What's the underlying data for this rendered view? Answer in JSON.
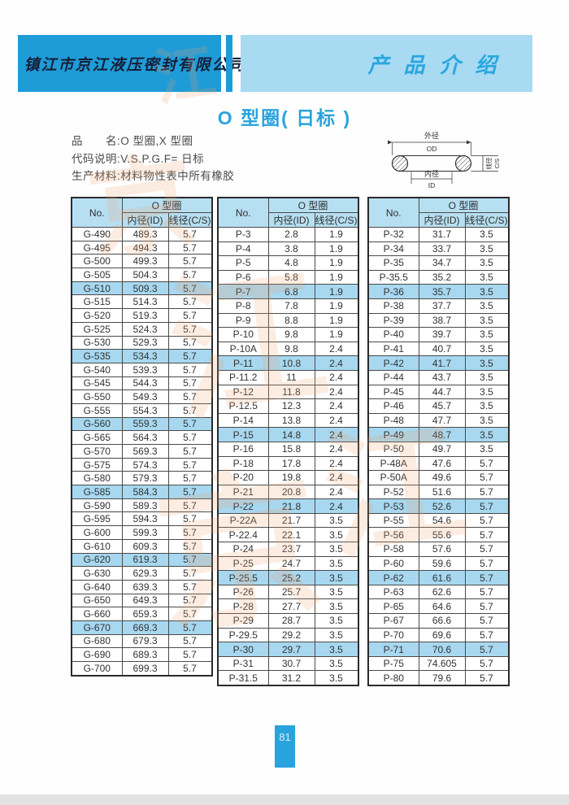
{
  "header": {
    "company": "镇江市京江液压密封有限公司",
    "section": "产品介绍"
  },
  "title": "O 型圈( 日标 )",
  "info": [
    "品　　名:O 型圈,X 型圈",
    "代码说明:V.S.P.G.F= 日标",
    "生产材料:材料物性表中所有橡胶"
  ],
  "diagram": {
    "od_label": "外径",
    "od_abbr": "OD",
    "id_label": "内径",
    "id_abbr": "ID",
    "cs_label": "线径",
    "cs_abbr": "C/S"
  },
  "table_header": {
    "no": "No.",
    "group": "O 型圈",
    "id": "内径(ID)",
    "cs": "线径(C/S)"
  },
  "tables": [
    {
      "highlight_rows": [
        4,
        9,
        14,
        19,
        24,
        29
      ],
      "rows": [
        [
          "G-490",
          "489.3",
          "5.7"
        ],
        [
          "G-495",
          "494.3",
          "5.7"
        ],
        [
          "G-500",
          "499.3",
          "5.7"
        ],
        [
          "G-505",
          "504.3",
          "5.7"
        ],
        [
          "G-510",
          "509.3",
          "5.7"
        ],
        [
          "G-515",
          "514.3",
          "5.7"
        ],
        [
          "G-520",
          "519.3",
          "5.7"
        ],
        [
          "G-525",
          "524.3",
          "5.7"
        ],
        [
          "G-530",
          "529.3",
          "5.7"
        ],
        [
          "G-535",
          "534.3",
          "5.7"
        ],
        [
          "G-540",
          "539.3",
          "5.7"
        ],
        [
          "G-545",
          "544.3",
          "5.7"
        ],
        [
          "G-550",
          "549.3",
          "5.7"
        ],
        [
          "G-555",
          "554.3",
          "5.7"
        ],
        [
          "G-560",
          "559.3",
          "5.7"
        ],
        [
          "G-565",
          "564.3",
          "5.7"
        ],
        [
          "G-570",
          "569.3",
          "5.7"
        ],
        [
          "G-575",
          "574.3",
          "5.7"
        ],
        [
          "G-580",
          "579.3",
          "5.7"
        ],
        [
          "G-585",
          "584.3",
          "5.7"
        ],
        [
          "G-590",
          "589.3",
          "5.7"
        ],
        [
          "G-595",
          "594.3",
          "5.7"
        ],
        [
          "G-600",
          "599.3",
          "5.7"
        ],
        [
          "G-610",
          "609.3",
          "5.7"
        ],
        [
          "G-620",
          "619.3",
          "5.7"
        ],
        [
          "G-630",
          "629.3",
          "5.7"
        ],
        [
          "G-640",
          "639.3",
          "5.7"
        ],
        [
          "G-650",
          "649.3",
          "5.7"
        ],
        [
          "G-660",
          "659.3",
          "5.7"
        ],
        [
          "G-670",
          "669.3",
          "5.7"
        ],
        [
          "G-680",
          "679.3",
          "5.7"
        ],
        [
          "G-690",
          "689.3",
          "5.7"
        ],
        [
          "G-700",
          "699.3",
          "5.7"
        ]
      ]
    },
    {
      "highlight_rows": [
        4,
        9,
        14,
        19,
        24,
        29
      ],
      "rows": [
        [
          "P-3",
          "2.8",
          "1.9"
        ],
        [
          "P-4",
          "3.8",
          "1.9"
        ],
        [
          "P-5",
          "4.8",
          "1.9"
        ],
        [
          "P-6",
          "5.8",
          "1.9"
        ],
        [
          "P-7",
          "6.8",
          "1.9"
        ],
        [
          "P-8",
          "7.8",
          "1.9"
        ],
        [
          "P-9",
          "8.8",
          "1.9"
        ],
        [
          "P-10",
          "9.8",
          "1.9"
        ],
        [
          "P-10A",
          "9.8",
          "2.4"
        ],
        [
          "P-11",
          "10.8",
          "2.4"
        ],
        [
          "P-11.2",
          "11",
          "2.4"
        ],
        [
          "P-12",
          "11.8",
          "2.4"
        ],
        [
          "P-12.5",
          "12.3",
          "2.4"
        ],
        [
          "P-14",
          "13.8",
          "2.4"
        ],
        [
          "P-15",
          "14.8",
          "2.4"
        ],
        [
          "P-16",
          "15.8",
          "2.4"
        ],
        [
          "P-18",
          "17.8",
          "2.4"
        ],
        [
          "P-20",
          "19.8",
          "2.4"
        ],
        [
          "P-21",
          "20.8",
          "2.4"
        ],
        [
          "P-22",
          "21.8",
          "2.4"
        ],
        [
          "P-22A",
          "21.7",
          "3.5"
        ],
        [
          "P-22.4",
          "22.1",
          "3.5"
        ],
        [
          "P-24",
          "23.7",
          "3.5"
        ],
        [
          "P-25",
          "24.7",
          "3.5"
        ],
        [
          "P-25.5",
          "25.2",
          "3.5"
        ],
        [
          "P-26",
          "25.7",
          "3.5"
        ],
        [
          "P-28",
          "27.7",
          "3.5"
        ],
        [
          "P-29",
          "28.7",
          "3.5"
        ],
        [
          "P-29.5",
          "29.2",
          "3.5"
        ],
        [
          "P-30",
          "29.7",
          "3.5"
        ],
        [
          "P-31",
          "30.7",
          "3.5"
        ],
        [
          "P-31.5",
          "31.2",
          "3.5"
        ]
      ]
    },
    {
      "highlight_rows": [
        4,
        9,
        14,
        19,
        24,
        29
      ],
      "rows": [
        [
          "P-32",
          "31.7",
          "3.5"
        ],
        [
          "P-34",
          "33.7",
          "3.5"
        ],
        [
          "P-35",
          "34.7",
          "3.5"
        ],
        [
          "P-35.5",
          "35.2",
          "3.5"
        ],
        [
          "P-36",
          "35.7",
          "3.5"
        ],
        [
          "P-38",
          "37.7",
          "3.5"
        ],
        [
          "P-39",
          "38.7",
          "3.5"
        ],
        [
          "P-40",
          "39.7",
          "3.5"
        ],
        [
          "P-41",
          "40.7",
          "3.5"
        ],
        [
          "P-42",
          "41.7",
          "3.5"
        ],
        [
          "P-44",
          "43.7",
          "3.5"
        ],
        [
          "P-45",
          "44.7",
          "3.5"
        ],
        [
          "P-46",
          "45.7",
          "3.5"
        ],
        [
          "P-48",
          "47.7",
          "3.5"
        ],
        [
          "P-49",
          "48.7",
          "3.5"
        ],
        [
          "P-50",
          "49.7",
          "3.5"
        ],
        [
          "P-48A",
          "47.6",
          "5.7"
        ],
        [
          "P-50A",
          "49.6",
          "5.7"
        ],
        [
          "P-52",
          "51.6",
          "5.7"
        ],
        [
          "P-53",
          "52.6",
          "5.7"
        ],
        [
          "P-55",
          "54.6",
          "5.7"
        ],
        [
          "P-56",
          "55.6",
          "5.7"
        ],
        [
          "P-58",
          "57.6",
          "5.7"
        ],
        [
          "P-60",
          "59.6",
          "5.7"
        ],
        [
          "P-62",
          "61.6",
          "5.7"
        ],
        [
          "P-63",
          "62.6",
          "5.7"
        ],
        [
          "P-65",
          "64.6",
          "5.7"
        ],
        [
          "P-67",
          "66.6",
          "5.7"
        ],
        [
          "P-70",
          "69.6",
          "5.7"
        ],
        [
          "P-71",
          "70.6",
          "5.7"
        ],
        [
          "P-75",
          "74.605",
          "5.7"
        ],
        [
          "P-80",
          "79.6",
          "5.7"
        ]
      ]
    }
  ],
  "page_number": "81",
  "watermark_glyphs": [
    "京",
    "江",
    "京",
    "江",
    "江"
  ],
  "colors": {
    "band_dark": "#1e9cd8",
    "band_light": "#a8daf2",
    "accent": "#29a3dc",
    "table_header_bg": "#b7dff2",
    "row_highlight_bg": "#a7d8f0",
    "watermark": "#f29e68"
  }
}
